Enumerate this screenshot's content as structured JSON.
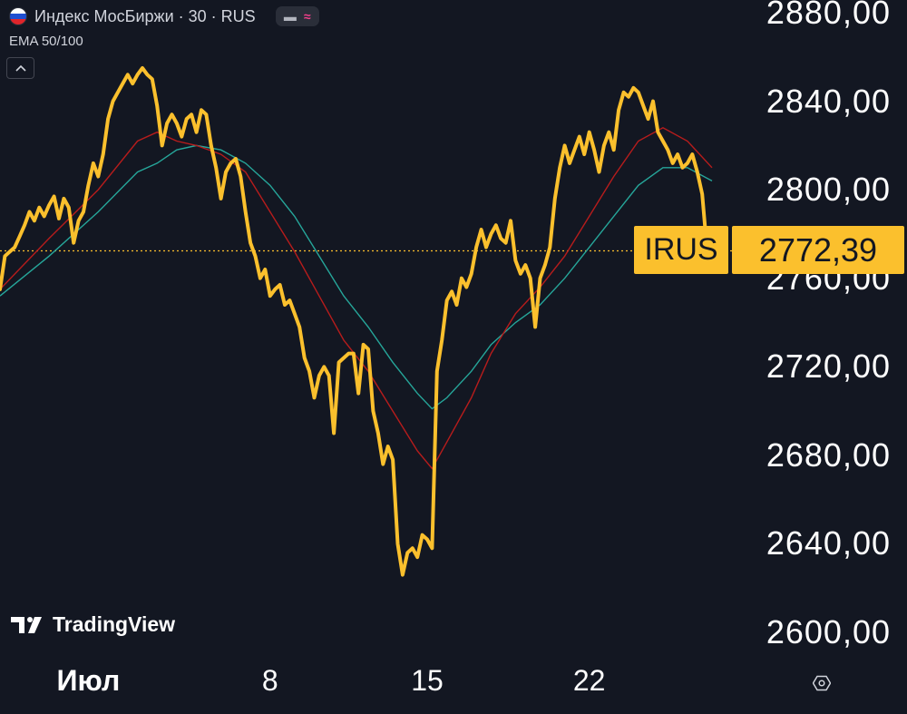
{
  "header": {
    "symbol_title": "Индекс МосБиржи · 30 · RUS",
    "indicator_label": "EMA 50/100",
    "flag_colors": [
      "#ffffff",
      "#1f4fd1",
      "#e0252b"
    ]
  },
  "price_tag": {
    "symbol": "IRUS",
    "price": "2772,39"
  },
  "watermark": {
    "brand": "TradingView"
  },
  "colors": {
    "background": "#131722",
    "price_line": "#fbc02d",
    "ema50": "#b71c1c",
    "ema100": "#26a69a"
  },
  "chart_data": {
    "type": "line",
    "ylim": [
      2600,
      2880
    ],
    "current_price": 2772.39,
    "y_tick_labels": [
      "2880,00",
      "2840,00",
      "2800,00",
      "2760,00",
      "2720,00",
      "2680,00",
      "2640,00",
      "2600,00"
    ],
    "y_ticks": [
      2880,
      2840,
      2800,
      2760,
      2720,
      2680,
      2640,
      2600
    ],
    "x_tick_labels": [
      "Июл",
      "8",
      "15",
      "22"
    ],
    "x_ticks": [
      18,
      55,
      87,
      120
    ],
    "x_range": [
      0,
      145
    ],
    "series": [
      {
        "key": "price",
        "points": [
          [
            0,
            2755
          ],
          [
            1,
            2770
          ],
          [
            2,
            2772
          ],
          [
            3,
            2774
          ],
          [
            4,
            2779
          ],
          [
            5,
            2784
          ],
          [
            6,
            2790
          ],
          [
            7,
            2786
          ],
          [
            8,
            2792
          ],
          [
            9,
            2788
          ],
          [
            10,
            2793
          ],
          [
            11,
            2797
          ],
          [
            12,
            2787
          ],
          [
            13,
            2796
          ],
          [
            14,
            2792
          ],
          [
            15,
            2776
          ],
          [
            16,
            2786
          ],
          [
            17,
            2790
          ],
          [
            18,
            2802
          ],
          [
            19,
            2812
          ],
          [
            20,
            2806
          ],
          [
            21,
            2816
          ],
          [
            22,
            2832
          ],
          [
            23,
            2840
          ],
          [
            24,
            2844
          ],
          [
            25,
            2848
          ],
          [
            26,
            2852
          ],
          [
            27,
            2848
          ],
          [
            28,
            2852
          ],
          [
            29,
            2855
          ],
          [
            30,
            2852
          ],
          [
            31,
            2850
          ],
          [
            32,
            2838
          ],
          [
            33,
            2820
          ],
          [
            34,
            2830
          ],
          [
            35,
            2834
          ],
          [
            36,
            2830
          ],
          [
            37,
            2824
          ],
          [
            38,
            2832
          ],
          [
            39,
            2834
          ],
          [
            40,
            2826
          ],
          [
            41,
            2836
          ],
          [
            42,
            2834
          ],
          [
            43,
            2820
          ],
          [
            44,
            2810
          ],
          [
            45,
            2796
          ],
          [
            46,
            2808
          ],
          [
            47,
            2812
          ],
          [
            48,
            2814
          ],
          [
            49,
            2806
          ],
          [
            50,
            2790
          ],
          [
            51,
            2776
          ],
          [
            52,
            2770
          ],
          [
            53,
            2760
          ],
          [
            54,
            2764
          ],
          [
            55,
            2752
          ],
          [
            56,
            2755
          ],
          [
            57,
            2757
          ],
          [
            58,
            2748
          ],
          [
            59,
            2750
          ],
          [
            60,
            2744
          ],
          [
            61,
            2738
          ],
          [
            62,
            2724
          ],
          [
            63,
            2718
          ],
          [
            64,
            2706
          ],
          [
            65,
            2716
          ],
          [
            66,
            2720
          ],
          [
            67,
            2716
          ],
          [
            68,
            2690
          ],
          [
            69,
            2722
          ],
          [
            70,
            2724
          ],
          [
            71,
            2726
          ],
          [
            72,
            2726
          ],
          [
            73,
            2708
          ],
          [
            74,
            2730
          ],
          [
            75,
            2728
          ],
          [
            76,
            2700
          ],
          [
            77,
            2690
          ],
          [
            78,
            2676
          ],
          [
            79,
            2684
          ],
          [
            80,
            2678
          ],
          [
            81,
            2640
          ],
          [
            82,
            2626
          ],
          [
            83,
            2636
          ],
          [
            84,
            2638
          ],
          [
            85,
            2634
          ],
          [
            86,
            2644
          ],
          [
            87,
            2642
          ],
          [
            88,
            2638
          ],
          [
            89,
            2718
          ],
          [
            90,
            2732
          ],
          [
            91,
            2750
          ],
          [
            92,
            2754
          ],
          [
            93,
            2748
          ],
          [
            94,
            2760
          ],
          [
            95,
            2756
          ],
          [
            96,
            2762
          ],
          [
            97,
            2774
          ],
          [
            98,
            2782
          ],
          [
            99,
            2774
          ],
          [
            100,
            2780
          ],
          [
            101,
            2784
          ],
          [
            102,
            2778
          ],
          [
            103,
            2776
          ],
          [
            104,
            2786
          ],
          [
            105,
            2768
          ],
          [
            106,
            2762
          ],
          [
            107,
            2766
          ],
          [
            108,
            2760
          ],
          [
            109,
            2738
          ],
          [
            110,
            2760
          ],
          [
            111,
            2766
          ],
          [
            112,
            2774
          ],
          [
            113,
            2796
          ],
          [
            114,
            2810
          ],
          [
            115,
            2820
          ],
          [
            116,
            2812
          ],
          [
            117,
            2818
          ],
          [
            118,
            2824
          ],
          [
            119,
            2816
          ],
          [
            120,
            2826
          ],
          [
            121,
            2818
          ],
          [
            122,
            2808
          ],
          [
            123,
            2820
          ],
          [
            124,
            2826
          ],
          [
            125,
            2818
          ],
          [
            126,
            2836
          ],
          [
            127,
            2844
          ],
          [
            128,
            2842
          ],
          [
            129,
            2846
          ],
          [
            130,
            2844
          ],
          [
            131,
            2838
          ],
          [
            132,
            2832
          ],
          [
            133,
            2840
          ],
          [
            134,
            2826
          ],
          [
            135,
            2822
          ],
          [
            136,
            2818
          ],
          [
            137,
            2812
          ],
          [
            138,
            2816
          ],
          [
            139,
            2810
          ],
          [
            140,
            2812
          ],
          [
            141,
            2816
          ],
          [
            142,
            2808
          ],
          [
            143,
            2798
          ],
          [
            144,
            2772.39
          ]
        ]
      },
      {
        "key": "ema50",
        "points": [
          [
            0,
            2755
          ],
          [
            10,
            2778
          ],
          [
            20,
            2800
          ],
          [
            28,
            2822
          ],
          [
            32,
            2826
          ],
          [
            36,
            2822
          ],
          [
            40,
            2820
          ],
          [
            45,
            2816
          ],
          [
            50,
            2808
          ],
          [
            55,
            2790
          ],
          [
            60,
            2772
          ],
          [
            65,
            2752
          ],
          [
            70,
            2732
          ],
          [
            75,
            2718
          ],
          [
            80,
            2700
          ],
          [
            85,
            2682
          ],
          [
            88,
            2674
          ],
          [
            91,
            2686
          ],
          [
            96,
            2706
          ],
          [
            100,
            2726
          ],
          [
            105,
            2744
          ],
          [
            110,
            2756
          ],
          [
            115,
            2770
          ],
          [
            120,
            2788
          ],
          [
            125,
            2806
          ],
          [
            130,
            2822
          ],
          [
            135,
            2828
          ],
          [
            140,
            2822
          ],
          [
            145,
            2810
          ]
        ]
      },
      {
        "key": "ema100",
        "points": [
          [
            0,
            2752
          ],
          [
            10,
            2770
          ],
          [
            20,
            2790
          ],
          [
            28,
            2808
          ],
          [
            32,
            2812
          ],
          [
            36,
            2818
          ],
          [
            40,
            2820
          ],
          [
            45,
            2818
          ],
          [
            50,
            2812
          ],
          [
            55,
            2802
          ],
          [
            60,
            2788
          ],
          [
            65,
            2770
          ],
          [
            70,
            2752
          ],
          [
            75,
            2738
          ],
          [
            80,
            2722
          ],
          [
            85,
            2708
          ],
          [
            88,
            2701
          ],
          [
            91,
            2706
          ],
          [
            96,
            2718
          ],
          [
            100,
            2730
          ],
          [
            105,
            2740
          ],
          [
            110,
            2748
          ],
          [
            115,
            2760
          ],
          [
            120,
            2774
          ],
          [
            125,
            2788
          ],
          [
            130,
            2802
          ],
          [
            135,
            2810
          ],
          [
            140,
            2810
          ],
          [
            145,
            2804
          ]
        ]
      }
    ]
  }
}
